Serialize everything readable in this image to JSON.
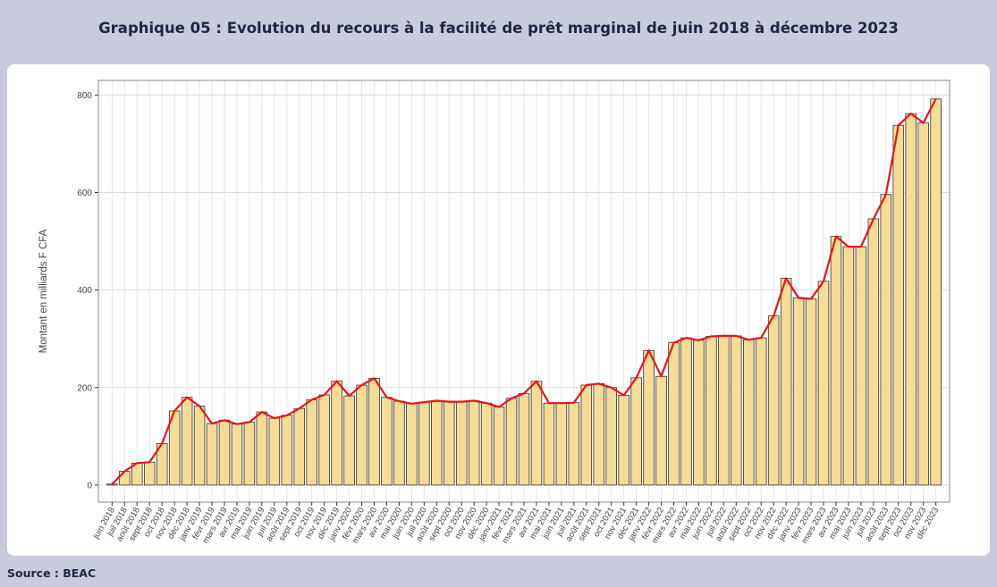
{
  "chart_data": {
    "type": "bar",
    "title": "Graphique 05 : Evolution du recours à la facilité de prêt marginal de juin 2018 à décembre 2023",
    "y_label": "Montant en milliards F CFA",
    "categories": [
      "juin 2018",
      "juil 2018",
      "août 2018",
      "sept 2018",
      "oct 2018",
      "nov 2018",
      "déc 2018",
      "janv 2019",
      "févr 2019",
      "mars 2019",
      "avr 2019",
      "mai 2019",
      "juin 2019",
      "juil 2019",
      "août 2019",
      "sept 2019",
      "oct 2019",
      "nov 2019",
      "déc 2019",
      "janv 2020",
      "févr 2020",
      "mars 2020",
      "avr 2020",
      "mai 2020",
      "juin 2020",
      "juil 2020",
      "août 2020",
      "sept 2020",
      "oct 2020",
      "nov 2020",
      "déc 2020",
      "janv 2021",
      "févr 2021",
      "mars 2021",
      "avr 2021",
      "mai 2021",
      "juin 2021",
      "juil 2021",
      "août 2021",
      "sept 2021",
      "oct 2021",
      "nov 2021",
      "déc 2021",
      "janv 2022",
      "févr 2022",
      "mars 2022",
      "avr 2022",
      "mai 2022",
      "juin 2022",
      "juil 2022",
      "août 2022",
      "sept 2022",
      "oct 2022",
      "nov 2022",
      "déc 2022",
      "janv 2023",
      "févr 2023",
      "mars 2023",
      "avr 2023",
      "mai 2023",
      "juin 2023",
      "juil 2023",
      "août 2023",
      "sept 2023",
      "oct 2023",
      "nov 2023",
      "déc 2023"
    ],
    "values": [
      2,
      28,
      45,
      47,
      85,
      152,
      180,
      162,
      126,
      133,
      125,
      129,
      150,
      137,
      143,
      157,
      175,
      185,
      213,
      183,
      205,
      219,
      180,
      172,
      167,
      170,
      173,
      171,
      171,
      173,
      168,
      160,
      178,
      188,
      213,
      168,
      168,
      169,
      205,
      208,
      200,
      184,
      220,
      276,
      223,
      292,
      302,
      297,
      305,
      306,
      306,
      298,
      302,
      347,
      424,
      384,
      382,
      418,
      510,
      489,
      489,
      546,
      596,
      738,
      762,
      743,
      792
    ],
    "bar_color": "#f6dd96",
    "line_color": "#e8141b",
    "ylim": [
      -35,
      830
    ],
    "yticks": [
      0,
      200,
      400,
      600,
      800
    ],
    "grid": true
  },
  "source": "Source : BEAC"
}
